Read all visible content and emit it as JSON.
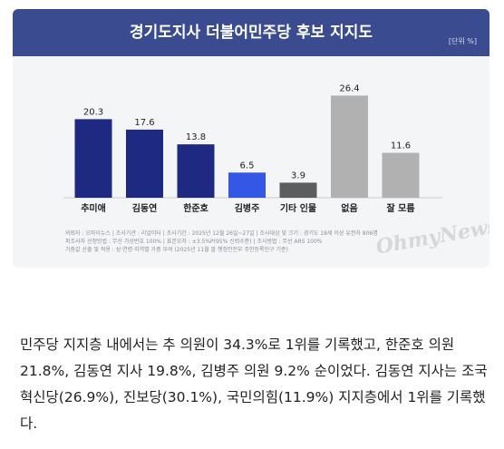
{
  "chart_data": {
    "type": "bar",
    "title": "경기도지사 더불어민주당 후보 지지도",
    "unit_label": "[단위 %]",
    "categories": [
      "추미애",
      "김동연",
      "한준호",
      "김병주",
      "기타 인물",
      "없음",
      "잘 모름"
    ],
    "values": [
      20.3,
      17.6,
      13.8,
      6.5,
      3.9,
      26.4,
      11.6
    ],
    "value_labels": [
      "20.3",
      "17.6",
      "13.8",
      "6.5",
      "3.9",
      "26.4",
      "11.6"
    ],
    "bar_colors": [
      "#1e2a82",
      "#1e2a82",
      "#1e2a82",
      "#3557e6",
      "#5d5d5d",
      "#b1b1b1",
      "#b1b1b1"
    ],
    "ylim": [
      0,
      30
    ]
  },
  "source_lines": [
    "의뢰자 : 오마이뉴스   |   조사기관 : 리얼미터   |   조사기간 : 2025년 12월 26일~27일   |   조사대상 및 크기 : 경기도 18세 이상 유권자 806명",
    "피조사자 선정방법 : 무선 가상번호 100%   |   표본오차 : ±3.5%P(95% 신뢰수준)   |   조사방법 : 무선 ARS 100%",
    "가중값 산출 및 적용 : 성·연령·지역별 가중 부여 (2025년 11월 말 행정안전부 주민등록인구 기준)"
  ],
  "watermark": "OhmyNews",
  "body_text": "민주당 지지층 내에서는 추 의원이 34.3%로 1위를 기록했고, 한준호 의원 21.8%, 김동연 지사 19.8%, 김병주 의원 9.2% 순이었다. 김동연 지사는 조국혁신당(26.9%), 진보당(30.1%), 국민의힘(11.9%) 지지층에서 1위를 기록했다.",
  "colors": {
    "title_bar": "#3a4c8f",
    "card_bg": "#f4f5f7"
  }
}
